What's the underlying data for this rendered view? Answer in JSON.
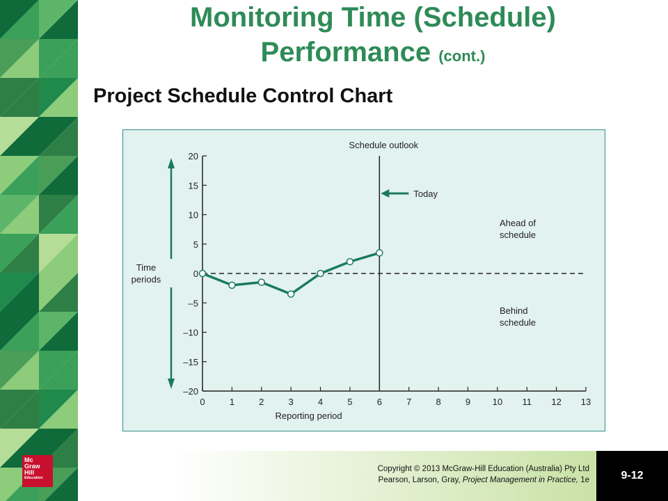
{
  "slide": {
    "title_line1": "Monitoring Time (Schedule)",
    "title_line2": "Performance",
    "title_suffix": "(cont.)",
    "subtitle": "Project Schedule Control Chart",
    "copyright_line1": "Copyright © 2013 McGraw-Hill Education (Australia) Pty Ltd",
    "copyright_line2_prefix": "Pearson, Larson, Gray,",
    "copyright_line2_book": "Project Management in Practice,",
    "copyright_line2_edition": "1e",
    "slide_number": "9-12",
    "logo_lines": [
      "Mc",
      "Graw",
      "Hill",
      "Education"
    ]
  },
  "colors": {
    "title": "#2e8b57",
    "series_line": "#1a7a5e",
    "panel_bg": "#e2f2ef",
    "arrow": "#1a7a5e"
  },
  "chart_data": {
    "type": "line",
    "x": [
      0,
      1,
      2,
      3,
      4,
      5,
      6
    ],
    "series": [
      {
        "values": [
          0,
          -2,
          -1.5,
          -3.5,
          0,
          2,
          3.5
        ]
      }
    ],
    "xlabel": "Reporting period",
    "ylabel": "Time periods",
    "xlim": [
      0,
      13
    ],
    "ylim": [
      -20,
      20
    ],
    "xticks": [
      "0",
      "1",
      "2",
      "3",
      "4",
      "5",
      "6",
      "7",
      "8",
      "9",
      "10",
      "11",
      "12",
      "13"
    ],
    "yticks": [
      "20",
      "15",
      "10",
      "5",
      "0",
      "–5",
      "–10",
      "–15",
      "–20"
    ],
    "ytick_values": [
      20,
      15,
      10,
      5,
      0,
      -5,
      -10,
      -15,
      -20
    ],
    "baseline": 0,
    "today_x": 6,
    "annotations": {
      "outlook": "Schedule outlook",
      "today": "Today",
      "ahead_line1": "Ahead of",
      "ahead_line2": "schedule",
      "behind_line1": "Behind",
      "behind_line2": "schedule",
      "ylabel_line1": "Time",
      "ylabel_line2": "periods"
    }
  }
}
